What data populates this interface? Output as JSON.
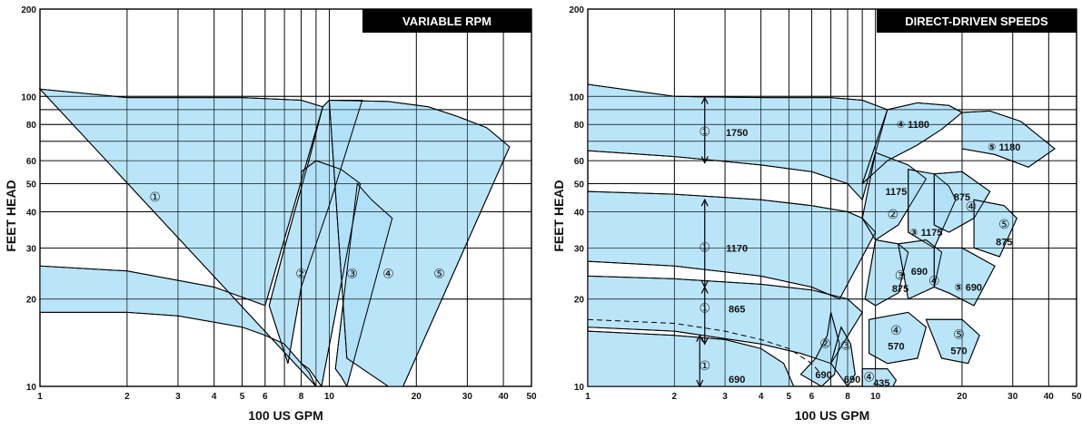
{
  "chart_data": [
    {
      "type": "area",
      "title": "VARIABLE RPM",
      "xlabel": "100 US GPM",
      "ylabel": "FEET HEAD",
      "xscale": "log",
      "yscale": "log",
      "xlim": [
        1,
        50
      ],
      "ylim": [
        10,
        200
      ],
      "x_ticks": [
        1,
        2,
        3,
        4,
        5,
        6,
        8,
        10,
        20,
        30,
        40,
        50
      ],
      "y_ticks": [
        10,
        20,
        30,
        40,
        50,
        60,
        80,
        100,
        200
      ],
      "x_tick_labels": [
        "1",
        "2",
        "3",
        "4",
        "5",
        "6",
        "8",
        "10",
        "20",
        "30",
        "40",
        "50"
      ],
      "y_tick_labels": [
        "10",
        "20",
        "30",
        "40",
        "50",
        "60",
        "80",
        "100",
        "200"
      ],
      "grid": true,
      "series": [
        {
          "label": "①",
          "label_at": [
            2.5,
            45
          ],
          "points": [
            [
              1,
              106
            ],
            [
              2,
              99
            ],
            [
              3,
              99
            ],
            [
              5,
              99
            ],
            [
              8,
              97
            ],
            [
              9.5,
              92
            ],
            [
              6,
              19
            ],
            [
              4,
              22
            ],
            [
              2,
              25
            ],
            [
              1,
              26
            ],
            [
              1,
              18
            ],
            [
              2,
              18
            ],
            [
              3,
              17.5
            ],
            [
              5,
              16
            ],
            [
              6,
              15
            ],
            [
              7,
              14
            ],
            [
              8,
              12
            ],
            [
              8.5,
              11.2
            ],
            [
              9,
              10
            ]
          ]
        },
        {
          "label": "②",
          "label_at": [
            8,
            24.5
          ],
          "points": [
            [
              6.2,
              19
            ],
            [
              7,
              30
            ],
            [
              8.5,
              60
            ],
            [
              9,
              75
            ],
            [
              9.5,
              92
            ],
            [
              10,
              97
            ],
            [
              13,
              97
            ],
            [
              10,
              42
            ],
            [
              8,
              22
            ],
            [
              7.2,
              12
            ]
          ]
        },
        {
          "label": "③",
          "label_at": [
            12,
            24.5
          ],
          "points": [
            [
              8,
              55
            ],
            [
              9,
              60
            ],
            [
              11,
              56
            ],
            [
              12.8,
              50
            ],
            [
              9.4,
              10
            ],
            [
              8.5,
              11.5
            ],
            [
              8,
              12
            ]
          ]
        },
        {
          "label": "④",
          "label_at": [
            16,
            24.5
          ],
          "points": [
            [
              12.5,
              50
            ],
            [
              14,
              44
            ],
            [
              16.5,
              38
            ],
            [
              11.5,
              10
            ],
            [
              11,
              10.8
            ],
            [
              10.5,
              11.5
            ]
          ]
        },
        {
          "label": "⑤",
          "label_at": [
            24,
            24.5
          ],
          "points": [
            [
              10,
              97
            ],
            [
              16,
              96
            ],
            [
              22,
              92
            ],
            [
              28,
              85
            ],
            [
              35,
              78
            ],
            [
              42,
              67
            ],
            [
              18,
              10
            ],
            [
              16,
              10
            ],
            [
              11.5,
              12.5
            ]
          ]
        }
      ],
      "annotations": []
    },
    {
      "type": "area",
      "title": "DIRECT-DRIVEN SPEEDS",
      "xlabel": "100 US GPM",
      "ylabel": "FEET HEAD",
      "xscale": "log",
      "yscale": "log",
      "xlim": [
        1,
        50
      ],
      "ylim": [
        10,
        200
      ],
      "x_ticks": [
        1,
        2,
        3,
        4,
        5,
        6,
        8,
        10,
        20,
        30,
        40,
        50
      ],
      "y_ticks": [
        10,
        20,
        30,
        40,
        50,
        60,
        80,
        100,
        200
      ],
      "x_tick_labels": [
        "1",
        "2",
        "3",
        "4",
        "5",
        "6",
        "8",
        "10",
        "20",
        "30",
        "40",
        "50"
      ],
      "y_tick_labels": [
        "10",
        "20",
        "30",
        "40",
        "50",
        "60",
        "80",
        "100",
        "200"
      ],
      "grid": true,
      "series": [
        {
          "label": "① 1750",
          "points": [
            [
              1,
              110
            ],
            [
              2,
              100
            ],
            [
              4,
              99
            ],
            [
              7,
              99
            ],
            [
              9,
              97
            ],
            [
              11,
              90
            ],
            [
              9,
              44
            ],
            [
              8,
              50
            ],
            [
              6,
              55
            ],
            [
              4,
              58
            ],
            [
              2,
              62
            ],
            [
              1,
              65
            ]
          ]
        },
        {
          "label": "④ 1180",
          "points": [
            [
              11,
              90
            ],
            [
              14,
              95
            ],
            [
              18,
              93
            ],
            [
              20,
              88
            ],
            [
              17,
              77
            ],
            [
              14,
              68
            ],
            [
              11,
              60
            ],
            [
              9,
              50
            ]
          ]
        },
        {
          "label": "⑤ 1180",
          "points": [
            [
              20,
              88
            ],
            [
              25,
              89
            ],
            [
              32,
              82
            ],
            [
              42,
              66
            ],
            [
              34,
              57
            ],
            [
              26,
              63
            ],
            [
              20,
              66
            ]
          ]
        },
        {
          "label": "① 1170",
          "points": [
            [
              1,
              47
            ],
            [
              2,
              46
            ],
            [
              4,
              44
            ],
            [
              6,
              42
            ],
            [
              8,
              40
            ],
            [
              9,
              38
            ],
            [
              10,
              34
            ],
            [
              7.5,
              20
            ],
            [
              6,
              22
            ],
            [
              4,
              24
            ],
            [
              2,
              26
            ],
            [
              1,
              27
            ]
          ]
        },
        {
          "label": "② 1175",
          "points": [
            [
              10,
              64
            ],
            [
              13,
              58
            ],
            [
              15,
              52
            ],
            [
              12,
              36
            ],
            [
              10,
              32
            ],
            [
              9,
              38
            ]
          ]
        },
        {
          "label": "③ 1175",
          "points": [
            [
              13,
              56
            ],
            [
              16,
              54
            ],
            [
              18,
              49
            ],
            [
              19,
              44
            ],
            [
              16,
              30
            ],
            [
              13,
              34
            ]
          ]
        },
        {
          "label": "④ 875",
          "points": [
            [
              16,
              54
            ],
            [
              20,
              55
            ],
            [
              25,
              47
            ],
            [
              22,
              38
            ],
            [
              18,
              34
            ],
            [
              16,
              36
            ]
          ]
        },
        {
          "label": "⑤ 875",
          "points": [
            [
              22,
              44
            ],
            [
              28,
              42
            ],
            [
              31,
              38
            ],
            [
              27,
              28
            ],
            [
              22,
              30
            ]
          ]
        },
        {
          "label": "① 865",
          "points": [
            [
              1,
              24
            ],
            [
              2,
              23.5
            ],
            [
              4,
              22.5
            ],
            [
              6,
              21.5
            ],
            [
              8,
              20
            ],
            [
              9,
              18
            ],
            [
              7,
              12
            ],
            [
              5.5,
              13
            ],
            [
              4,
              14
            ],
            [
              2,
              15.5
            ],
            [
              1,
              16
            ]
          ]
        },
        {
          "label": "③ 875",
          "points": [
            [
              10,
              32
            ],
            [
              12,
              31
            ],
            [
              13,
              29
            ],
            [
              12,
              21
            ],
            [
              10,
              19
            ],
            [
              9.2,
              20
            ]
          ]
        },
        {
          "label": "④ 690",
          "points": [
            [
              12,
              31
            ],
            [
              15,
              32
            ],
            [
              17,
              29
            ],
            [
              16,
              22
            ],
            [
              13,
              20
            ]
          ]
        },
        {
          "label": "⑤ 690",
          "points": [
            [
              16,
              30
            ],
            [
              20,
              30
            ],
            [
              26,
              26
            ],
            [
              22,
              19
            ],
            [
              18,
              21
            ],
            [
              16,
              22
            ]
          ]
        },
        {
          "label": "① 690",
          "points": [
            [
              1,
              15.5
            ],
            [
              2,
              15
            ],
            [
              3,
              14.5
            ],
            [
              4,
              13.5
            ],
            [
              4.8,
              12
            ],
            [
              5.2,
              10
            ],
            [
              1,
              10
            ]
          ]
        },
        {
          "label": "② 690",
          "points": [
            [
              5.5,
              11
            ],
            [
              6.2,
              12.5
            ],
            [
              6.8,
              15
            ],
            [
              7,
              18
            ],
            [
              7.5,
              14
            ],
            [
              7.2,
              11
            ],
            [
              6.5,
              10
            ]
          ]
        },
        {
          "label": "③ 690",
          "points": [
            [
              7,
              12
            ],
            [
              7.6,
              16
            ],
            [
              8.2,
              14
            ],
            [
              8.5,
              11
            ],
            [
              8,
              10
            ]
          ]
        },
        {
          "label": "④ 570",
          "points": [
            [
              9.5,
              17
            ],
            [
              13,
              18
            ],
            [
              15,
              16
            ],
            [
              14,
              12.5
            ],
            [
              11,
              12
            ],
            [
              9.5,
              13
            ]
          ]
        },
        {
          "label": "⑤ 570",
          "points": [
            [
              15,
              17
            ],
            [
              20,
              17
            ],
            [
              23,
              15
            ],
            [
              21,
              12
            ],
            [
              17,
              12.5
            ]
          ]
        },
        {
          "label": "④ 435",
          "points": [
            [
              9,
              11.5
            ],
            [
              11,
              11.5
            ],
            [
              11.8,
              10.5
            ],
            [
              11.5,
              10
            ],
            [
              9,
              10
            ]
          ]
        }
      ],
      "dashed_curve": [
        [
          1,
          17
        ],
        [
          2,
          16.5
        ],
        [
          3,
          15.5
        ],
        [
          4,
          14.5
        ],
        [
          5,
          13.5
        ],
        [
          6,
          12
        ],
        [
          6.5,
          11
        ]
      ],
      "annotations": [
        {
          "text": "①",
          "at": [
            2.55,
            75
          ]
        },
        {
          "text": "1750",
          "at": [
            3.3,
            75
          ]
        },
        {
          "text": "④  1180",
          "at": [
            13.5,
            80
          ]
        },
        {
          "text": "⑤  1180",
          "at": [
            28,
            67
          ]
        },
        {
          "text": "1175",
          "at": [
            11.8,
            47
          ]
        },
        {
          "text": "②",
          "at": [
            11.5,
            39
          ]
        },
        {
          "text": "③ 1175",
          "at": [
            15,
            34
          ]
        },
        {
          "text": "875",
          "at": [
            20,
            45
          ]
        },
        {
          "text": "④",
          "at": [
            21.5,
            41.5
          ]
        },
        {
          "text": "⑤",
          "at": [
            28,
            36
          ]
        },
        {
          "text": "875",
          "at": [
            28,
            31.5
          ]
        },
        {
          "text": "①",
          "at": [
            2.55,
            30
          ]
        },
        {
          "text": "1170",
          "at": [
            3.3,
            30
          ]
        },
        {
          "text": "③",
          "at": [
            12.2,
            24
          ]
        },
        {
          "text": "690",
          "at": [
            14.2,
            25
          ]
        },
        {
          "text": "875",
          "at": [
            12.2,
            21.8
          ]
        },
        {
          "text": "④",
          "at": [
            16,
            23
          ]
        },
        {
          "text": "⑤  690",
          "at": [
            21,
            22
          ]
        },
        {
          "text": "①",
          "at": [
            2.55,
            18.5
          ]
        },
        {
          "text": "865",
          "at": [
            3.3,
            18.5
          ]
        },
        {
          "text": "④",
          "at": [
            11.8,
            15.5
          ]
        },
        {
          "text": "570",
          "at": [
            11.8,
            13.8
          ]
        },
        {
          "text": "⑤",
          "at": [
            19.5,
            15
          ]
        },
        {
          "text": "570",
          "at": [
            19.5,
            13.3
          ]
        },
        {
          "text": "①",
          "at": [
            2.55,
            11.7
          ]
        },
        {
          "text": "690",
          "at": [
            3.3,
            10.6
          ]
        },
        {
          "text": "②",
          "at": [
            6.7,
            14
          ]
        },
        {
          "text": "690",
          "at": [
            6.6,
            11
          ]
        },
        {
          "text": "③",
          "at": [
            7.9,
            13.8
          ]
        },
        {
          "text": "690",
          "at": [
            8.3,
            10.6
          ]
        },
        {
          "text": "④",
          "at": [
            9.5,
            10.7
          ]
        },
        {
          "text": "435",
          "at": [
            10.5,
            10.3
          ]
        }
      ],
      "arrows": [
        {
          "x": 2.55,
          "from": 99,
          "to": 59
        },
        {
          "x": 2.55,
          "from": 44,
          "to": 22
        },
        {
          "x": 2.55,
          "from": 22,
          "to": 14
        },
        {
          "x": 2.45,
          "from": 15,
          "to": 10
        }
      ]
    }
  ]
}
